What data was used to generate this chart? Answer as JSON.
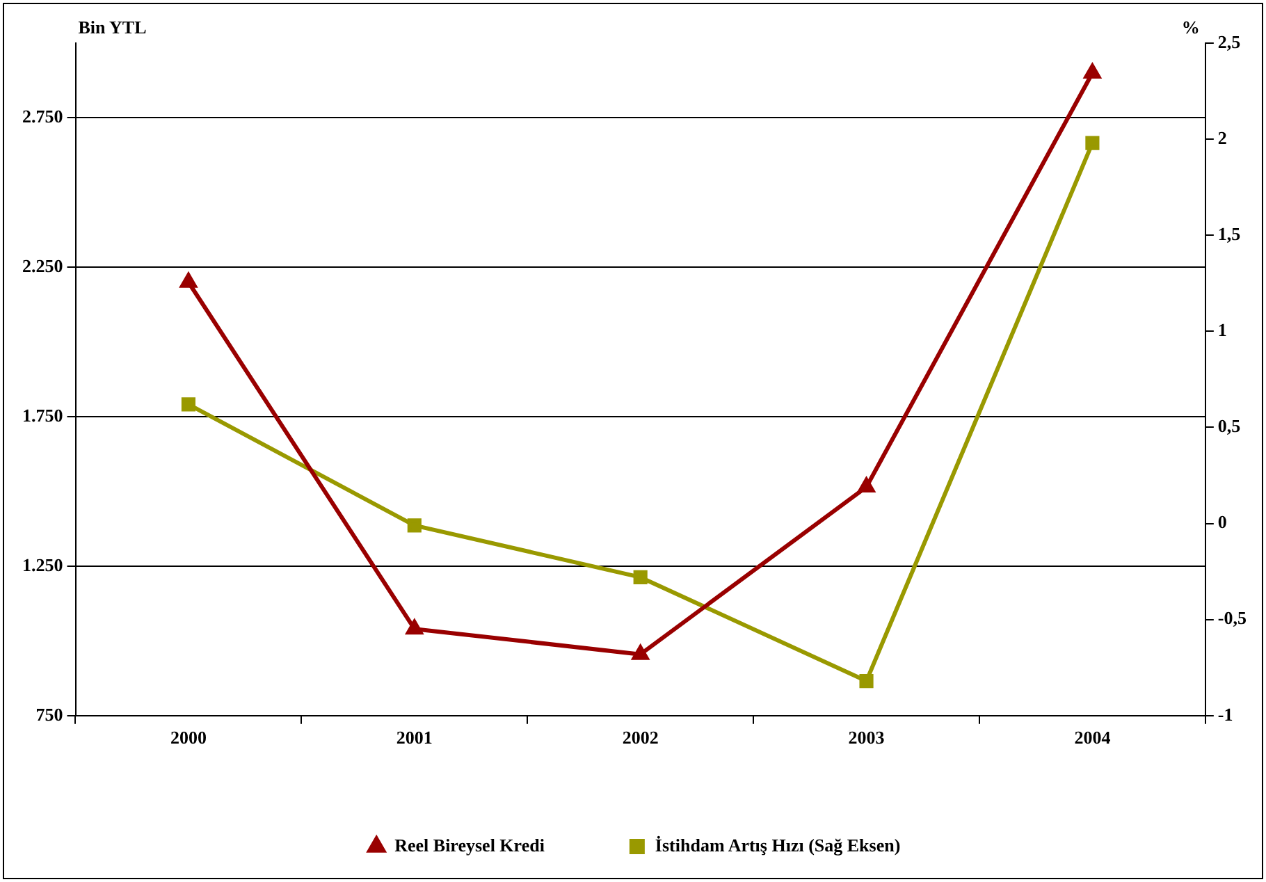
{
  "chart_data": {
    "type": "line",
    "categories": [
      "2000",
      "2001",
      "2002",
      "2003",
      "2004"
    ],
    "ylabel": "Bin YTL",
    "y2label": "%",
    "series": [
      {
        "name": "Reel Bireysel Kredi",
        "color": "#990000",
        "marker": "triangle",
        "values": [
          2200,
          1040,
          955,
          1515,
          2900
        ]
      },
      {
        "name": "İstihdam Artış Hızı (Sağ Eksen)",
        "color": "#999900",
        "marker": "square",
        "axis": "y2",
        "values": [
          0.62,
          -0.01,
          -0.28,
          -0.82,
          1.98
        ]
      }
    ],
    "ylim": [
      750,
      3000
    ],
    "yticks": [
      750,
      {
        "value": 1250,
        "label": "1.250"
      },
      {
        "value": 1750,
        "label": "1.750"
      },
      {
        "value": 2250,
        "label": "2.250"
      },
      {
        "value": 2750,
        "label": "2.750"
      }
    ],
    "y2lim": [
      -1,
      2.5
    ],
    "y2ticks": [
      -1,
      {
        "value": -0.5,
        "label": "-0,5"
      },
      0,
      {
        "value": 0.5,
        "label": "0,5"
      },
      1,
      {
        "value": 1.5,
        "label": "1,5"
      },
      2,
      {
        "value": 2.5,
        "label": "2,5"
      }
    ],
    "grid": "y",
    "legend": "bottom"
  }
}
